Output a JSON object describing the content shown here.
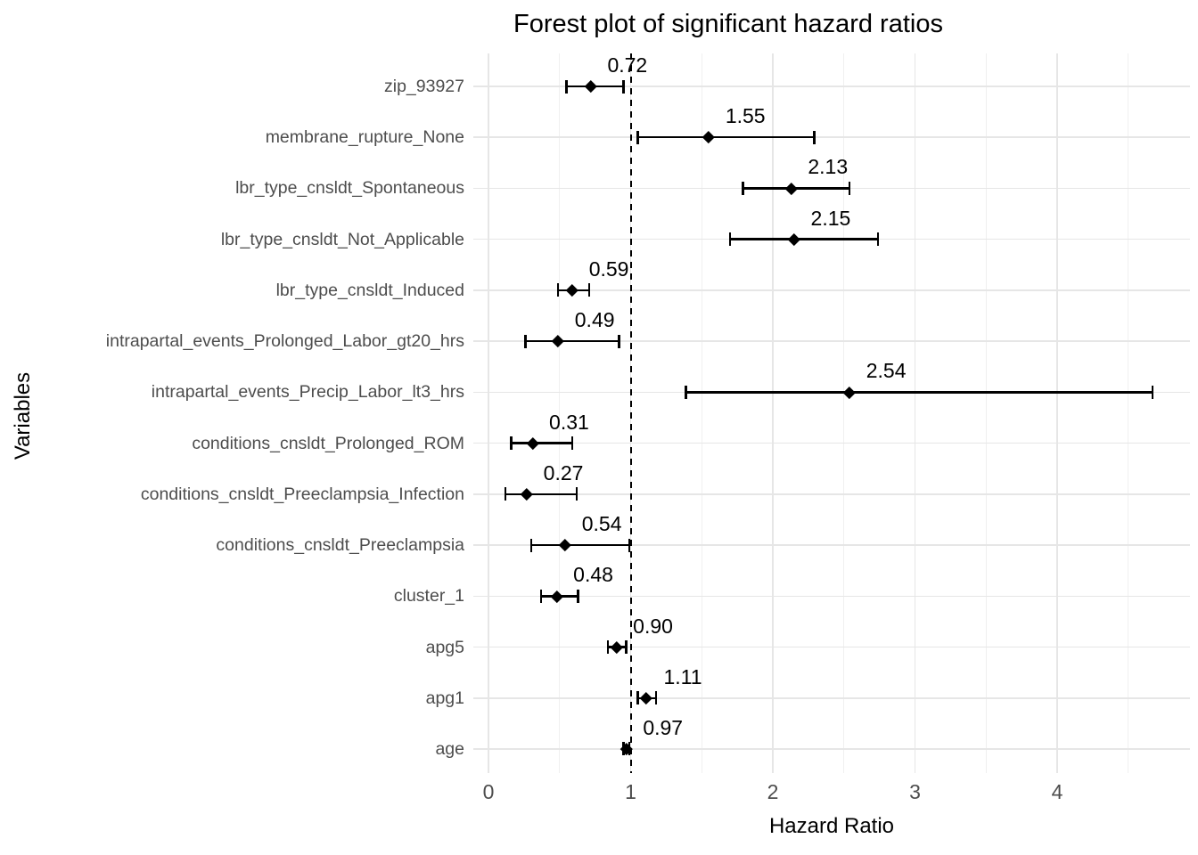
{
  "title": "Forest plot of significant hazard ratios",
  "chart_data": {
    "type": "scatter",
    "subtype": "forest-plot",
    "title": "Forest plot of significant hazard ratios",
    "xlabel": "Hazard Ratio",
    "ylabel": "Variables",
    "x_ticks": [
      0,
      1,
      2,
      3,
      4
    ],
    "x_minor_gridlines": [
      0.5,
      1.5,
      2.5,
      3.5,
      4.5
    ],
    "xlim": [
      -0.11,
      4.93
    ],
    "grid": "on",
    "legend": "none",
    "reference_line_x": 1,
    "reference_line_style": "dashed",
    "points": [
      {
        "variable": "zip_93927",
        "hr": 0.72,
        "label": "0.72",
        "ci_low": 0.55,
        "ci_high": 0.95
      },
      {
        "variable": "membrane_rupture_None",
        "hr": 1.55,
        "label": "1.55",
        "ci_low": 1.05,
        "ci_high": 2.29
      },
      {
        "variable": "lbr_type_cnsldt_Spontaneous",
        "hr": 2.13,
        "label": "2.13",
        "ci_low": 1.79,
        "ci_high": 2.54
      },
      {
        "variable": "lbr_type_cnsldt_Not_Applicable",
        "hr": 2.15,
        "label": "2.15",
        "ci_low": 1.7,
        "ci_high": 2.74
      },
      {
        "variable": "lbr_type_cnsldt_Induced",
        "hr": 0.59,
        "label": "0.59",
        "ci_low": 0.49,
        "ci_high": 0.71
      },
      {
        "variable": "intrapartal_events_Prolonged_Labor_gt20_hrs",
        "hr": 0.49,
        "label": "0.49",
        "ci_low": 0.26,
        "ci_high": 0.92
      },
      {
        "variable": "intrapartal_events_Precip_Labor_lt3_hrs",
        "hr": 2.54,
        "label": "2.54",
        "ci_low": 1.39,
        "ci_high": 4.67
      },
      {
        "variable": "conditions_cnsldt_Prolonged_ROM",
        "hr": 0.31,
        "label": "0.31",
        "ci_low": 0.16,
        "ci_high": 0.59
      },
      {
        "variable": "conditions_cnsldt_Preeclampsia_Infection",
        "hr": 0.27,
        "label": "0.27",
        "ci_low": 0.12,
        "ci_high": 0.62
      },
      {
        "variable": "conditions_cnsldt_Preeclampsia",
        "hr": 0.54,
        "label": "0.54",
        "ci_low": 0.3,
        "ci_high": 0.99
      },
      {
        "variable": "cluster_1",
        "hr": 0.48,
        "label": "0.48",
        "ci_low": 0.37,
        "ci_high": 0.63
      },
      {
        "variable": "apg5",
        "hr": 0.9,
        "label": "0.90",
        "ci_low": 0.84,
        "ci_high": 0.97
      },
      {
        "variable": "apg1",
        "hr": 1.11,
        "label": "1.11",
        "ci_low": 1.05,
        "ci_high": 1.18
      },
      {
        "variable": "age",
        "hr": 0.97,
        "label": "0.97",
        "ci_low": 0.95,
        "ci_high": 0.99
      }
    ],
    "colors": {
      "marker": "#000000",
      "ci_bar": "#000000",
      "value_label_text": "#000000",
      "reference_line": "#000000",
      "grid_major": "#e6e6e6",
      "grid_minor": "#f0f0f0",
      "tick_text": "#4d4d4d",
      "axis_title_text": "#000000",
      "background": "#ffffff"
    }
  }
}
